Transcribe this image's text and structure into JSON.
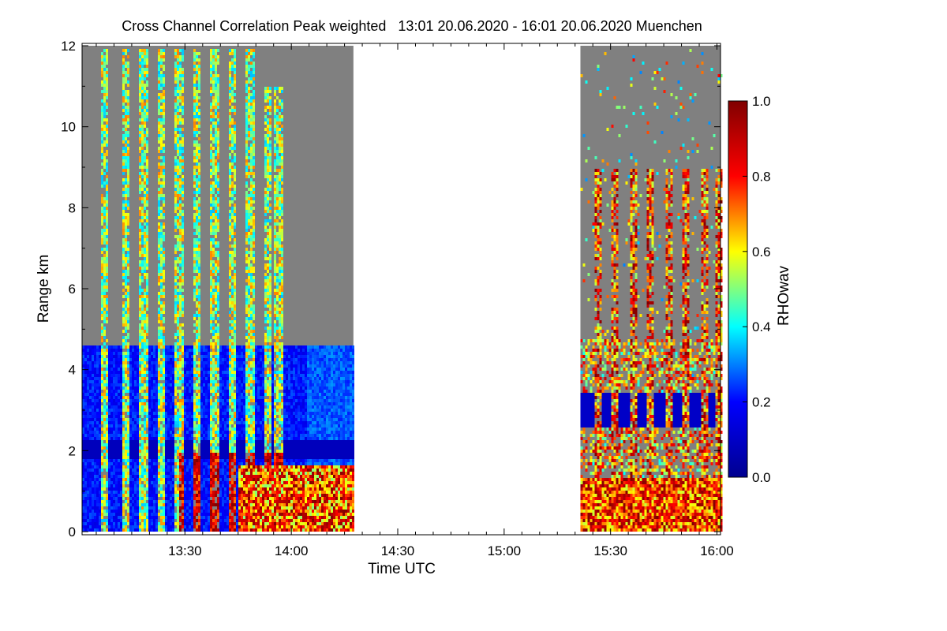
{
  "colors": {
    "no_data_gray": "#808080",
    "background": "#ffffff",
    "colorbar_stops": [
      "#00008f",
      "#0000ff",
      "#00ffff",
      "#ffff00",
      "#ff0000",
      "#800000"
    ]
  },
  "chart_data": {
    "type": "heatmap",
    "title": "Cross Channel Correlation Peak weighted   13:01 20.06.2020 - 16:01 20.06.2020 Muenchen",
    "xlabel": "Time UTC",
    "ylabel": "Range km",
    "x_range_minutes_utc": [
      781,
      961
    ],
    "y_range_km": [
      0,
      12
    ],
    "x_ticks": [
      {
        "label": "13:30",
        "minutes": 810
      },
      {
        "label": "14:00",
        "minutes": 840
      },
      {
        "label": "14:30",
        "minutes": 870
      },
      {
        "label": "15:00",
        "minutes": 900
      },
      {
        "label": "15:30",
        "minutes": 930
      },
      {
        "label": "16:00",
        "minutes": 960
      }
    ],
    "y_ticks": [
      0,
      2,
      4,
      6,
      8,
      10,
      12
    ],
    "colorbar": {
      "label": "RHOwav",
      "range": [
        0.0,
        1.0
      ],
      "ticks": [
        "0.0",
        "0.2",
        "0.4",
        "0.6",
        "0.8",
        "1.0"
      ]
    },
    "data_gaps_minutes": [
      [
        857.5,
        921.5
      ]
    ],
    "segments": [
      {
        "start_min": 781,
        "end_min": 857.5
      },
      {
        "start_min": 921.5,
        "end_min": 961
      }
    ],
    "cloud_top_km_approx": 4.6,
    "aerosol_layer_top_km_approx": 1.7,
    "precip_streaks_start_min": [
      787,
      793,
      798,
      803,
      808,
      813,
      818,
      823,
      828,
      833,
      836,
      926,
      931,
      936,
      941,
      946,
      951,
      956,
      960
    ]
  }
}
